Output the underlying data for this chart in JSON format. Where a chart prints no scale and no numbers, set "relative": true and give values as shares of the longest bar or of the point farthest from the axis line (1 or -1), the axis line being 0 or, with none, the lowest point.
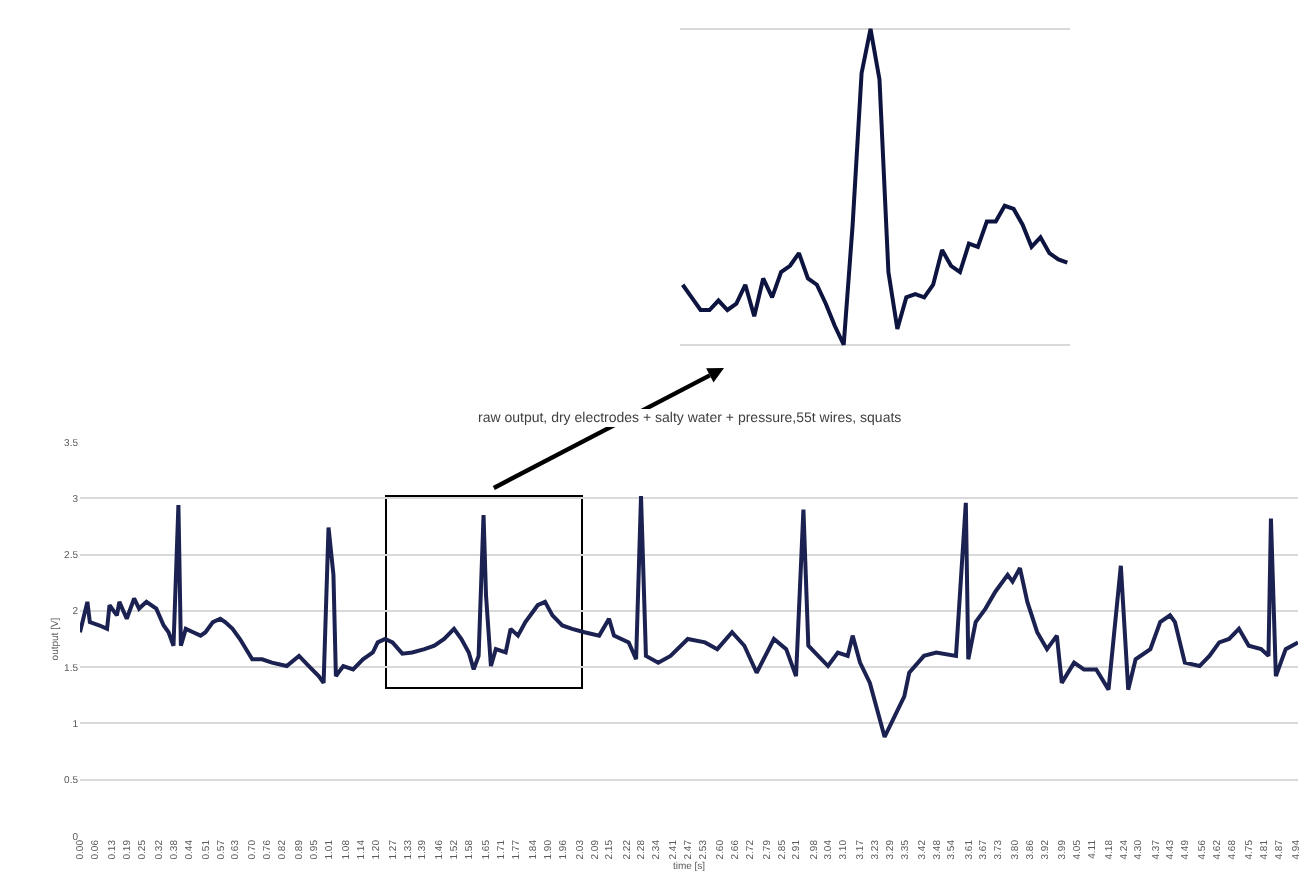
{
  "chart_data": [
    {
      "type": "line",
      "title": "raw output, dry electrodes + salty water + pressure,55t wires, squats",
      "xlabel": "time [s]",
      "ylabel": "output [V]",
      "x": [
        0.0,
        0.03,
        0.04,
        0.08,
        0.11,
        0.12,
        0.15,
        0.16,
        0.19,
        0.22,
        0.24,
        0.27,
        0.31,
        0.34,
        0.36,
        0.38,
        0.4,
        0.41,
        0.43,
        0.46,
        0.49,
        0.51,
        0.54,
        0.57,
        0.59,
        0.62,
        0.65,
        0.7,
        0.74,
        0.78,
        0.84,
        0.89,
        0.93,
        0.97,
        0.99,
        1.01,
        1.03,
        1.04,
        1.07,
        1.11,
        1.15,
        1.19,
        1.21,
        1.24,
        1.27,
        1.31,
        1.35,
        1.4,
        1.44,
        1.48,
        1.52,
        1.55,
        1.58,
        1.6,
        1.62,
        1.64,
        1.65,
        1.67,
        1.69,
        1.73,
        1.75,
        1.78,
        1.81,
        1.84,
        1.86,
        1.89,
        1.92,
        1.96,
        2.0,
        2.05,
        2.11,
        2.15,
        2.17,
        2.23,
        2.26,
        2.28,
        2.3,
        2.35,
        2.4,
        2.47,
        2.54,
        2.59,
        2.65,
        2.7,
        2.75,
        2.82,
        2.87,
        2.91,
        2.94,
        2.96,
        3.0,
        3.04,
        3.08,
        3.12,
        3.14,
        3.17,
        3.21,
        3.27,
        3.31,
        3.35,
        3.37,
        3.43,
        3.48,
        3.56,
        3.6,
        3.61,
        3.64,
        3.68,
        3.72,
        3.77,
        3.79,
        3.82,
        3.85,
        3.89,
        3.93,
        3.97,
        3.99,
        4.04,
        4.08,
        4.13,
        4.18,
        4.23,
        4.26,
        4.29,
        4.35,
        4.39,
        4.43,
        4.45,
        4.49,
        4.55,
        4.59,
        4.63,
        4.67,
        4.71,
        4.75,
        4.8,
        4.83,
        4.84,
        4.86,
        4.9,
        4.95
      ],
      "series": [
        {
          "color": "#1b2150",
          "values": [
            1.81,
            2.08,
            1.9,
            1.87,
            1.84,
            2.05,
            1.96,
            2.08,
            1.93,
            2.11,
            2.02,
            2.08,
            2.02,
            1.87,
            1.81,
            1.69,
            2.94,
            1.69,
            1.84,
            1.81,
            1.78,
            1.81,
            1.9,
            1.93,
            1.9,
            1.84,
            1.75,
            1.57,
            1.57,
            1.54,
            1.51,
            1.6,
            1.51,
            1.42,
            1.36,
            2.74,
            2.32,
            1.42,
            1.51,
            1.48,
            1.57,
            1.63,
            1.72,
            1.75,
            1.72,
            1.62,
            1.63,
            1.66,
            1.69,
            1.75,
            1.84,
            1.75,
            1.63,
            1.48,
            1.6,
            2.85,
            2.14,
            1.51,
            1.66,
            1.63,
            1.84,
            1.78,
            1.9,
            1.99,
            2.05,
            2.08,
            1.96,
            1.87,
            1.84,
            1.81,
            1.78,
            1.93,
            1.78,
            1.72,
            1.57,
            3.02,
            1.6,
            1.54,
            1.6,
            1.75,
            1.72,
            1.66,
            1.81,
            1.69,
            1.45,
            1.75,
            1.66,
            1.42,
            2.9,
            1.69,
            1.6,
            1.51,
            1.63,
            1.6,
            1.78,
            1.54,
            1.36,
            0.88,
            1.06,
            1.24,
            1.45,
            1.6,
            1.63,
            1.6,
            2.96,
            1.57,
            1.9,
            2.02,
            2.17,
            2.32,
            2.26,
            2.38,
            2.08,
            1.81,
            1.66,
            1.78,
            1.36,
            1.54,
            1.48,
            1.48,
            1.3,
            2.4,
            1.3,
            1.57,
            1.66,
            1.9,
            1.96,
            1.9,
            1.54,
            1.51,
            1.6,
            1.72,
            1.75,
            1.84,
            1.69,
            1.66,
            1.6,
            2.82,
            1.42,
            1.66,
            1.72
          ]
        }
      ],
      "xlim": [
        0,
        4.95
      ],
      "xticks": [
        {
          "value": 0,
          "label": "0.00"
        },
        0.06,
        0.13,
        0.19,
        0.25,
        0.32,
        0.38,
        0.44,
        0.51,
        0.57,
        0.63,
        {
          "value": 0.7,
          "label": "0.70"
        },
        0.76,
        0.82,
        0.89,
        0.95,
        1.01,
        1.08,
        1.14,
        {
          "value": 1.2,
          "label": "1.20"
        },
        1.27,
        1.33,
        1.39,
        1.46,
        1.52,
        1.58,
        1.65,
        1.71,
        1.77,
        1.84,
        {
          "value": 1.9,
          "label": "1.90"
        },
        1.96,
        2.03,
        2.09,
        2.15,
        2.22,
        2.28,
        2.34,
        2.41,
        2.47,
        2.53,
        {
          "value": 2.6,
          "label": "2.60"
        },
        2.66,
        2.72,
        2.79,
        2.85,
        2.91,
        2.98,
        3.04,
        {
          "value": 3.1,
          "label": "3.10"
        },
        3.17,
        3.23,
        3.29,
        3.35,
        3.42,
        3.48,
        3.54,
        3.61,
        3.67,
        3.73,
        {
          "value": 3.8,
          "label": "3.80"
        },
        3.86,
        3.92,
        3.99,
        4.05,
        4.11,
        4.18,
        4.24,
        {
          "value": 4.3,
          "label": "4.30"
        },
        4.37,
        4.43,
        4.49,
        4.56,
        4.62,
        4.68,
        4.75,
        4.81,
        4.87,
        4.94
      ],
      "ylim": [
        0,
        3.5
      ],
      "yticks": [
        0,
        0.5,
        1,
        1.5,
        2,
        2.5,
        3,
        3.5
      ],
      "grid": "y",
      "marker": "none",
      "line_style": "solid"
    },
    {
      "type": "line",
      "relative": true,
      "categories": [
        null,
        null,
        null,
        null,
        null,
        null,
        null,
        null,
        null,
        null,
        null,
        null,
        null,
        null,
        null,
        null,
        null,
        null,
        null,
        null,
        null,
        null,
        null,
        null,
        null,
        null,
        null,
        null,
        null,
        null,
        null,
        null,
        null,
        null,
        null,
        null,
        null,
        null,
        null,
        null,
        null,
        null,
        null,
        null
      ],
      "series": [
        {
          "color": "#0d1440",
          "values": [
            0.19,
            0.15,
            0.11,
            0.11,
            0.14,
            0.11,
            0.13,
            0.19,
            0.09,
            0.21,
            0.15,
            0.23,
            0.25,
            0.29,
            0.21,
            0.19,
            0.13,
            0.06,
            0,
            0.38,
            0.86,
            1,
            0.84,
            0.23,
            0.05,
            0.15,
            0.16,
            0.15,
            0.19,
            0.3,
            0.25,
            0.23,
            0.32,
            0.31,
            0.39,
            0.39,
            0.44,
            0.43,
            0.38,
            0.31,
            0.34,
            0.29,
            0.27,
            0.26
          ]
        }
      ],
      "grid": "y",
      "marker": "none",
      "line_style": "solid"
    }
  ]
}
